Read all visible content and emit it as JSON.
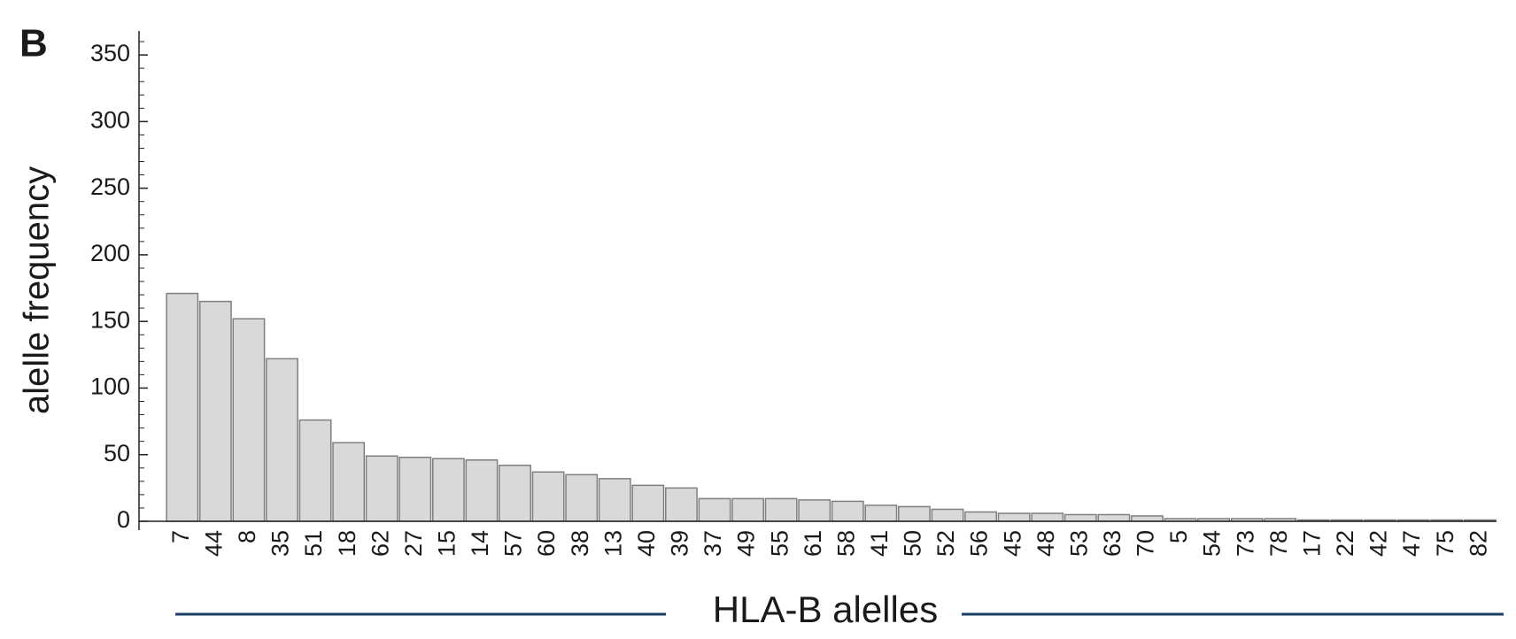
{
  "chart_data": {
    "type": "bar",
    "panel_label": "B",
    "ylabel": "alelle frequency",
    "xlabel": "HLA-B alelles",
    "categories": [
      "7",
      "44",
      "8",
      "35",
      "51",
      "18",
      "62",
      "27",
      "15",
      "14",
      "57",
      "60",
      "38",
      "13",
      "40",
      "39",
      "37",
      "49",
      "55",
      "61",
      "58",
      "41",
      "50",
      "52",
      "56",
      "45",
      "48",
      "53",
      "63",
      "70",
      "5",
      "54",
      "73",
      "78",
      "17",
      "22",
      "42",
      "47",
      "75",
      "82"
    ],
    "values": [
      171,
      165,
      152,
      122,
      76,
      59,
      49,
      48,
      47,
      46,
      42,
      37,
      35,
      32,
      27,
      25,
      17,
      17,
      17,
      16,
      15,
      12,
      11,
      9,
      7,
      6,
      6,
      5,
      5,
      4,
      2,
      2,
      2,
      2,
      1,
      1,
      1,
      1,
      1,
      1
    ],
    "color": "#d9d9d9",
    "edgecolor": "#7f7f7f",
    "ylim": [
      0,
      368
    ],
    "yticks": [
      0,
      50,
      100,
      150,
      200,
      250,
      300,
      350
    ],
    "yminorticks": [
      10,
      20,
      30,
      40,
      60,
      70,
      80,
      90,
      110,
      120,
      130,
      140,
      160,
      170,
      180,
      190,
      210,
      220,
      230,
      240,
      260,
      270,
      280,
      290,
      310,
      320,
      330,
      340,
      360
    ],
    "xlabel_color": "#1a3e63"
  }
}
